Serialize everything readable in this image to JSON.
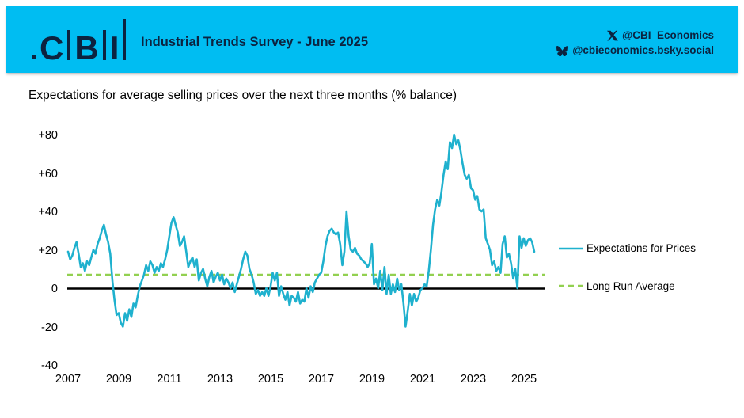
{
  "header": {
    "logo_letters": [
      "C",
      "B",
      "I"
    ],
    "title": "Industrial Trends Survey - June 2025",
    "social": {
      "twitter_handle": "@CBI_Economics",
      "bluesky_handle": "@cbieconomics.bsky.social"
    },
    "colors": {
      "background": "#00BDF2",
      "text": "#0C2340"
    }
  },
  "chart_data": {
    "type": "line",
    "title": "Expectations for average selling prices over the next three months (% balance)",
    "x_start": "2007-01",
    "x_end": "2025-06",
    "frequency": "monthly",
    "ylim": [
      -40,
      85
    ],
    "grid": false,
    "zero_line": true,
    "legend_position": "right",
    "x_tick_labels": [
      "2007",
      "2009",
      "2011",
      "2013",
      "2015",
      "2017",
      "2019",
      "2021",
      "2023",
      "2025"
    ],
    "y_tick_labels": [
      "+80",
      "+60",
      "+40",
      "+20",
      "0",
      "-20",
      "-40"
    ],
    "y_tick_values": [
      80,
      60,
      40,
      20,
      0,
      -20,
      -40
    ],
    "series": [
      {
        "name": "Expectations for Prices",
        "color": "#1FB1CE",
        "style": "solid",
        "values": [
          19,
          15,
          17,
          21,
          24,
          18,
          11,
          13,
          9,
          14,
          12,
          16,
          20,
          18,
          23,
          26,
          30,
          33,
          28,
          24,
          18,
          4,
          -6,
          -14,
          -13,
          -18,
          -20,
          -13,
          -17,
          -11,
          -15,
          -8,
          -10,
          -4,
          1,
          4,
          7,
          12,
          9,
          14,
          12,
          8,
          11,
          9,
          13,
          11,
          15,
          20,
          27,
          34,
          37,
          33,
          29,
          22,
          24,
          27,
          19,
          11,
          14,
          16,
          11,
          15,
          4,
          8,
          10,
          5,
          1,
          6,
          9,
          3,
          6,
          8,
          4,
          7,
          2,
          5,
          3,
          0,
          3,
          -2,
          2,
          6,
          10,
          15,
          19,
          17,
          10,
          7,
          3,
          -3,
          -1,
          -4,
          -2,
          -4,
          0,
          -4,
          1,
          8,
          4,
          8,
          -4,
          1,
          -3,
          -6,
          -2,
          -9,
          -4,
          -5,
          -7,
          -2,
          -8,
          -6,
          -7,
          0,
          -5,
          1,
          -2,
          3,
          5,
          7,
          8,
          14,
          22,
          27,
          30,
          31,
          29,
          28,
          29,
          23,
          12,
          19,
          40,
          27,
          20,
          19,
          21,
          18,
          17,
          15,
          14,
          13,
          11,
          13,
          23,
          2,
          5,
          0,
          9,
          -1,
          11,
          -3,
          7,
          -3,
          2,
          -2,
          5,
          -1,
          2,
          -8,
          -20,
          -12,
          -3,
          -9,
          -3,
          -7,
          -5,
          -1,
          0,
          2,
          1,
          9,
          20,
          33,
          41,
          46,
          43,
          50,
          59,
          66,
          62,
          76,
          73,
          80,
          75,
          77,
          72,
          65,
          59,
          57,
          59,
          52,
          51,
          46,
          48,
          41,
          40,
          41,
          26,
          23,
          20,
          12,
          14,
          9,
          11,
          8,
          23,
          27,
          16,
          18,
          13,
          5,
          10,
          0,
          27,
          21,
          26,
          22,
          25,
          26,
          24,
          19
        ]
      },
      {
        "name": "Long Run Average",
        "color": "#92D050",
        "style": "dashed",
        "value": 7
      }
    ]
  }
}
